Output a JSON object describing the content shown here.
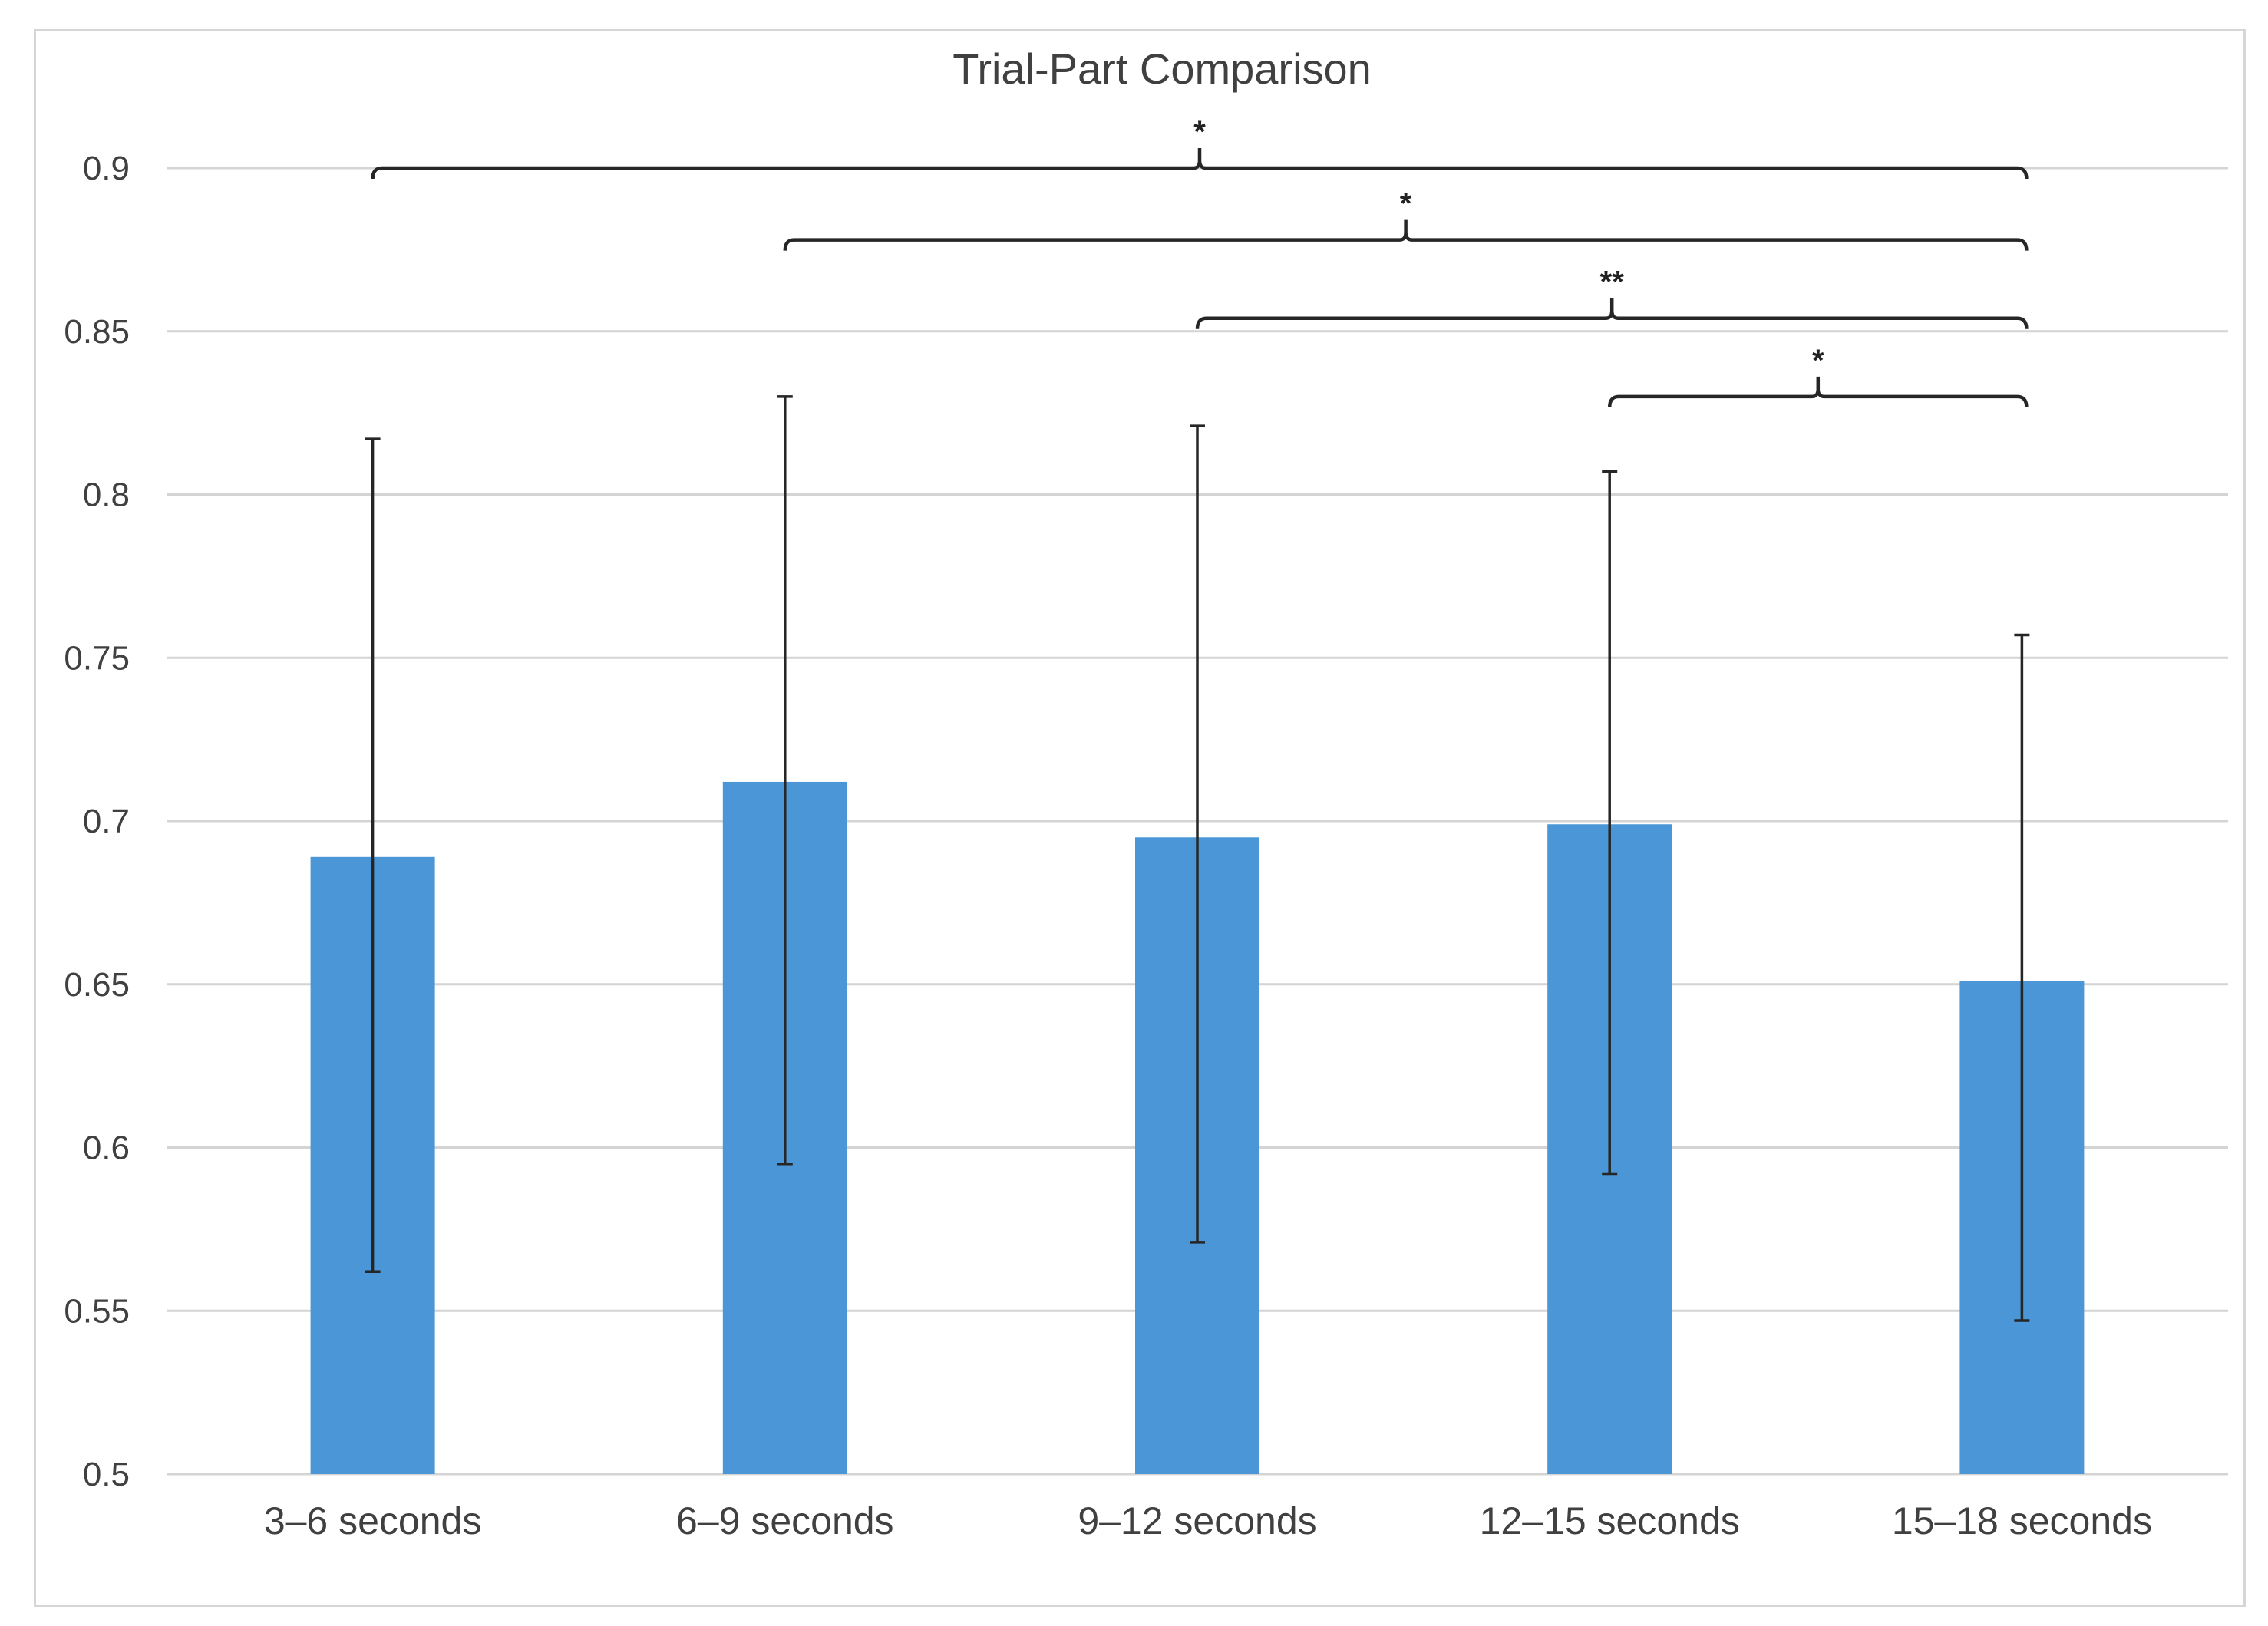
{
  "chart_data": {
    "type": "bar",
    "title": "Trial-Part Comparison",
    "xlabel": "",
    "ylabel": "",
    "categories": [
      "3–6 seconds",
      "6–9 seconds",
      "9–12 seconds",
      "12–15 seconds",
      "15–18 seconds"
    ],
    "values": [
      0.689,
      0.712,
      0.695,
      0.699,
      0.651
    ],
    "error_low": [
      0.562,
      0.595,
      0.571,
      0.592,
      0.547
    ],
    "error_high": [
      0.817,
      0.83,
      0.821,
      0.807,
      0.757
    ],
    "ylim": [
      0.5,
      0.9
    ],
    "yticks": [
      0.5,
      0.55,
      0.6,
      0.65,
      0.7,
      0.75,
      0.8,
      0.85,
      0.9
    ],
    "ytick_labels": [
      "0.5",
      "0.55",
      "0.6",
      "0.65",
      "0.7",
      "0.75",
      "0.8",
      "0.85",
      "0.9"
    ],
    "grid": true,
    "bar_color": "#4a96d6",
    "significance": [
      {
        "from": 0,
        "to": 4,
        "label": "*",
        "level": 0.9
      },
      {
        "from": 1,
        "to": 4,
        "label": "*",
        "level": 0.878
      },
      {
        "from": 2,
        "to": 4,
        "label": "**",
        "level": 0.854
      },
      {
        "from": 3,
        "to": 4,
        "label": "*",
        "level": 0.83
      }
    ]
  }
}
